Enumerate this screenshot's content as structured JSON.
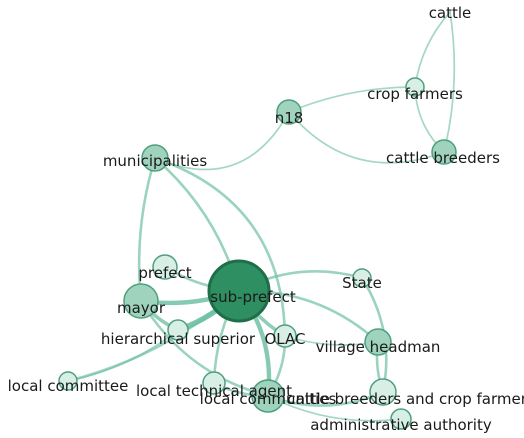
{
  "colors": {
    "edge": "#6dbfa1",
    "node_fill_light": "#d8efe6",
    "node_fill_mid": "#9fd3bd",
    "node_fill_dark": "#2e8f62",
    "node_stroke": "#4f9f7f",
    "node_stroke_dark": "#1f6e49"
  },
  "nodes": [
    {
      "id": "cattle",
      "label": "cattle",
      "weight": "light"
    },
    {
      "id": "crop_farmers",
      "label": "crop farmers",
      "weight": "light"
    },
    {
      "id": "cattle_breeders",
      "label": "cattle breeders",
      "weight": "mid"
    },
    {
      "id": "n18",
      "label": "n18",
      "weight": "mid"
    },
    {
      "id": "municipalities",
      "label": "municipalities",
      "weight": "mid"
    },
    {
      "id": "prefect",
      "label": "prefect",
      "weight": "light"
    },
    {
      "id": "sub_prefect",
      "label": "sub-prefect",
      "weight": "dark"
    },
    {
      "id": "mayor",
      "label": "mayor",
      "weight": "mid"
    },
    {
      "id": "state",
      "label": "State",
      "weight": "light"
    },
    {
      "id": "hierarchical_superior",
      "label": "hierarchical superior",
      "weight": "light"
    },
    {
      "id": "olac",
      "label": "OLAC",
      "weight": "light"
    },
    {
      "id": "village_headman",
      "label": "village headman",
      "weight": "mid"
    },
    {
      "id": "local_committee",
      "label": "local committee",
      "weight": "light"
    },
    {
      "id": "local_technical_agent",
      "label": "local technical agent",
      "weight": "light"
    },
    {
      "id": "local_communities",
      "label": "local communities",
      "weight": "mid"
    },
    {
      "id": "cattle_breeders_and_crop_farmers",
      "label": "cattle breeders and crop farmers",
      "weight": "light"
    },
    {
      "id": "administrative_authority",
      "label": "administrative authority",
      "weight": "light"
    }
  ],
  "edges": [
    {
      "from": "cattle",
      "to": "crop_farmers",
      "weight": 1
    },
    {
      "from": "crop_farmers",
      "to": "cattle_breeders",
      "weight": 1
    },
    {
      "from": "cattle",
      "to": "cattle_breeders",
      "weight": 1
    },
    {
      "from": "crop_farmers",
      "to": "n18",
      "weight": 1
    },
    {
      "from": "cattle_breeders",
      "to": "n18",
      "weight": 1
    },
    {
      "from": "n18",
      "to": "municipalities",
      "weight": 1
    },
    {
      "from": "municipalities",
      "to": "sub_prefect",
      "weight": 2
    },
    {
      "from": "municipalities",
      "to": "mayor",
      "weight": 2
    },
    {
      "from": "municipalities",
      "to": "olac",
      "weight": 2
    },
    {
      "from": "prefect",
      "to": "sub_prefect",
      "weight": 2
    },
    {
      "from": "mayor",
      "to": "sub_prefect",
      "weight": 4
    },
    {
      "from": "mayor",
      "to": "hierarchical_superior",
      "weight": 3
    },
    {
      "from": "sub_prefect",
      "to": "state",
      "weight": 2
    },
    {
      "from": "sub_prefect",
      "to": "olac",
      "weight": 3
    },
    {
      "from": "sub_prefect",
      "to": "village_headman",
      "weight": 2
    },
    {
      "from": "sub_prefect",
      "to": "local_communities",
      "weight": 4
    },
    {
      "from": "sub_prefect",
      "to": "local_technical_agent",
      "weight": 2
    },
    {
      "from": "hierarchical_superior",
      "to": "sub_prefect",
      "weight": 5
    },
    {
      "from": "local_committee",
      "to": "sub_prefect",
      "weight": 2
    },
    {
      "from": "local_committee",
      "to": "hierarchical_superior",
      "weight": 1
    },
    {
      "from": "olac",
      "to": "village_headman",
      "weight": 1
    },
    {
      "from": "state",
      "to": "cattle_breeders_and_crop_farmers",
      "weight": 2
    },
    {
      "from": "village_headman",
      "to": "cattle_breeders_and_crop_farmers",
      "weight": 2
    },
    {
      "from": "local_communities",
      "to": "cattle_breeders_and_crop_farmers",
      "weight": 2
    },
    {
      "from": "local_communities",
      "to": "administrative_authority",
      "weight": 1
    },
    {
      "from": "local_technical_agent",
      "to": "local_communities",
      "weight": 2
    },
    {
      "from": "olac",
      "to": "local_communities",
      "weight": 2
    },
    {
      "from": "mayor",
      "to": "local_communities",
      "weight": 2
    }
  ]
}
